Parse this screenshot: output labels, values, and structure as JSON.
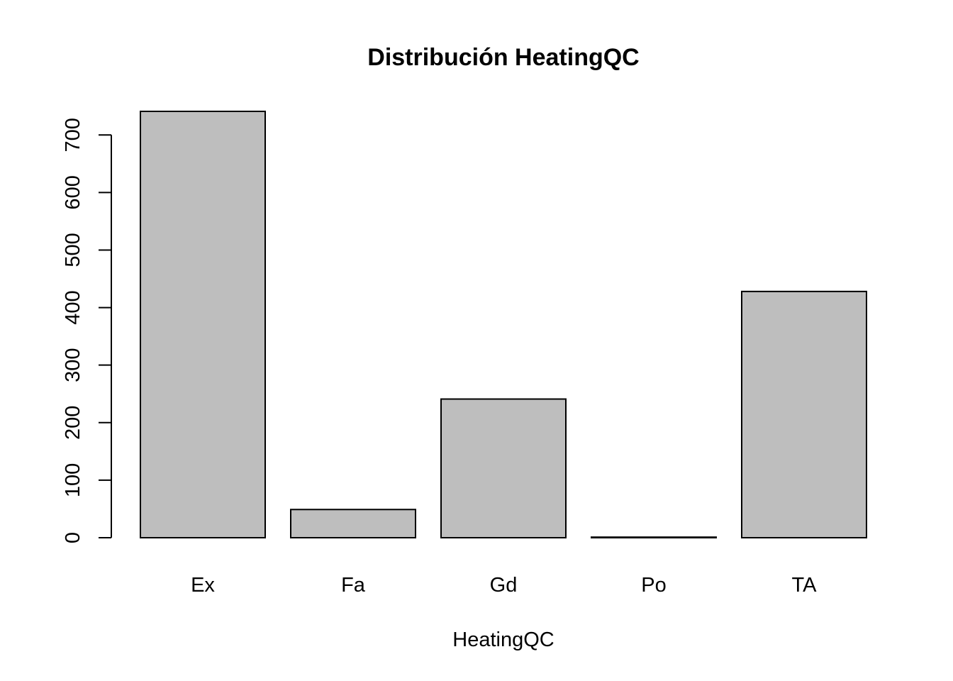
{
  "chart_data": {
    "type": "bar",
    "title": "Distribución HeatingQC",
    "xlabel": "HeatingQC",
    "ylabel": "",
    "categories": [
      "Ex",
      "Fa",
      "Gd",
      "Po",
      "TA"
    ],
    "values": [
      741,
      49,
      241,
      1,
      428
    ],
    "ylim": [
      0,
      741
    ],
    "yticks": [
      0,
      100,
      200,
      300,
      400,
      500,
      600,
      700
    ],
    "grid": false,
    "legend": "none",
    "bar_color": "#bebebe",
    "edge_color": "#000000"
  }
}
